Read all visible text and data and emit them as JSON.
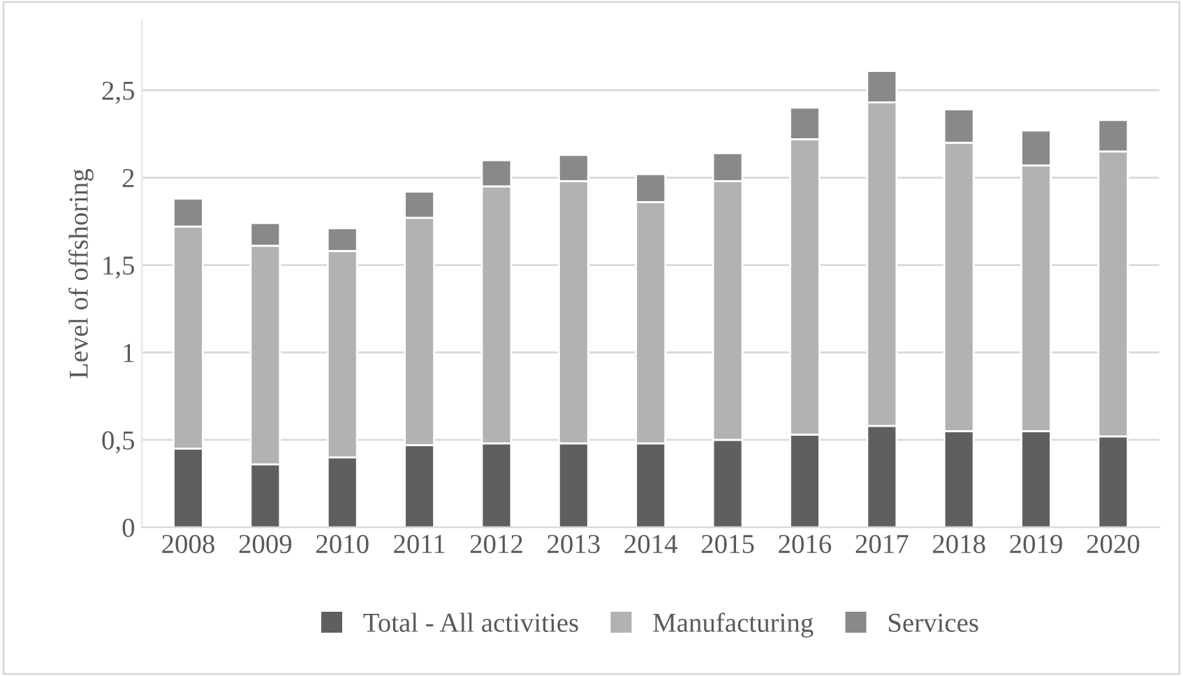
{
  "chart_data": {
    "type": "bar",
    "stacked": true,
    "ylabel": "Level of offshoring",
    "categories": [
      "2008",
      "2009",
      "2010",
      "2011",
      "2012",
      "2013",
      "2014",
      "2015",
      "2016",
      "2017",
      "2018",
      "2019",
      "2020"
    ],
    "series": [
      {
        "name": "Total - All activities",
        "color": "#5f5f5f",
        "values": [
          0.45,
          0.36,
          0.4,
          0.47,
          0.48,
          0.48,
          0.48,
          0.5,
          0.53,
          0.58,
          0.55,
          0.55,
          0.52
        ]
      },
      {
        "name": "Manufacturing",
        "color": "#b2b2b2",
        "values": [
          1.27,
          1.25,
          1.18,
          1.3,
          1.47,
          1.5,
          1.38,
          1.48,
          1.69,
          1.85,
          1.65,
          1.52,
          1.63
        ]
      },
      {
        "name": "Services",
        "color": "#898989",
        "values": [
          0.16,
          0.13,
          0.13,
          0.15,
          0.15,
          0.15,
          0.16,
          0.16,
          0.18,
          0.18,
          0.19,
          0.2,
          0.18
        ]
      }
    ],
    "ylim": [
      0,
      2.9
    ],
    "yticks": [
      0,
      {
        "value": 0.5,
        "label": "0,5"
      },
      1,
      {
        "value": 1.5,
        "label": "1,5"
      },
      2,
      {
        "value": 2.5,
        "label": "2,5"
      }
    ],
    "grid": "y",
    "legend": "bottom"
  }
}
